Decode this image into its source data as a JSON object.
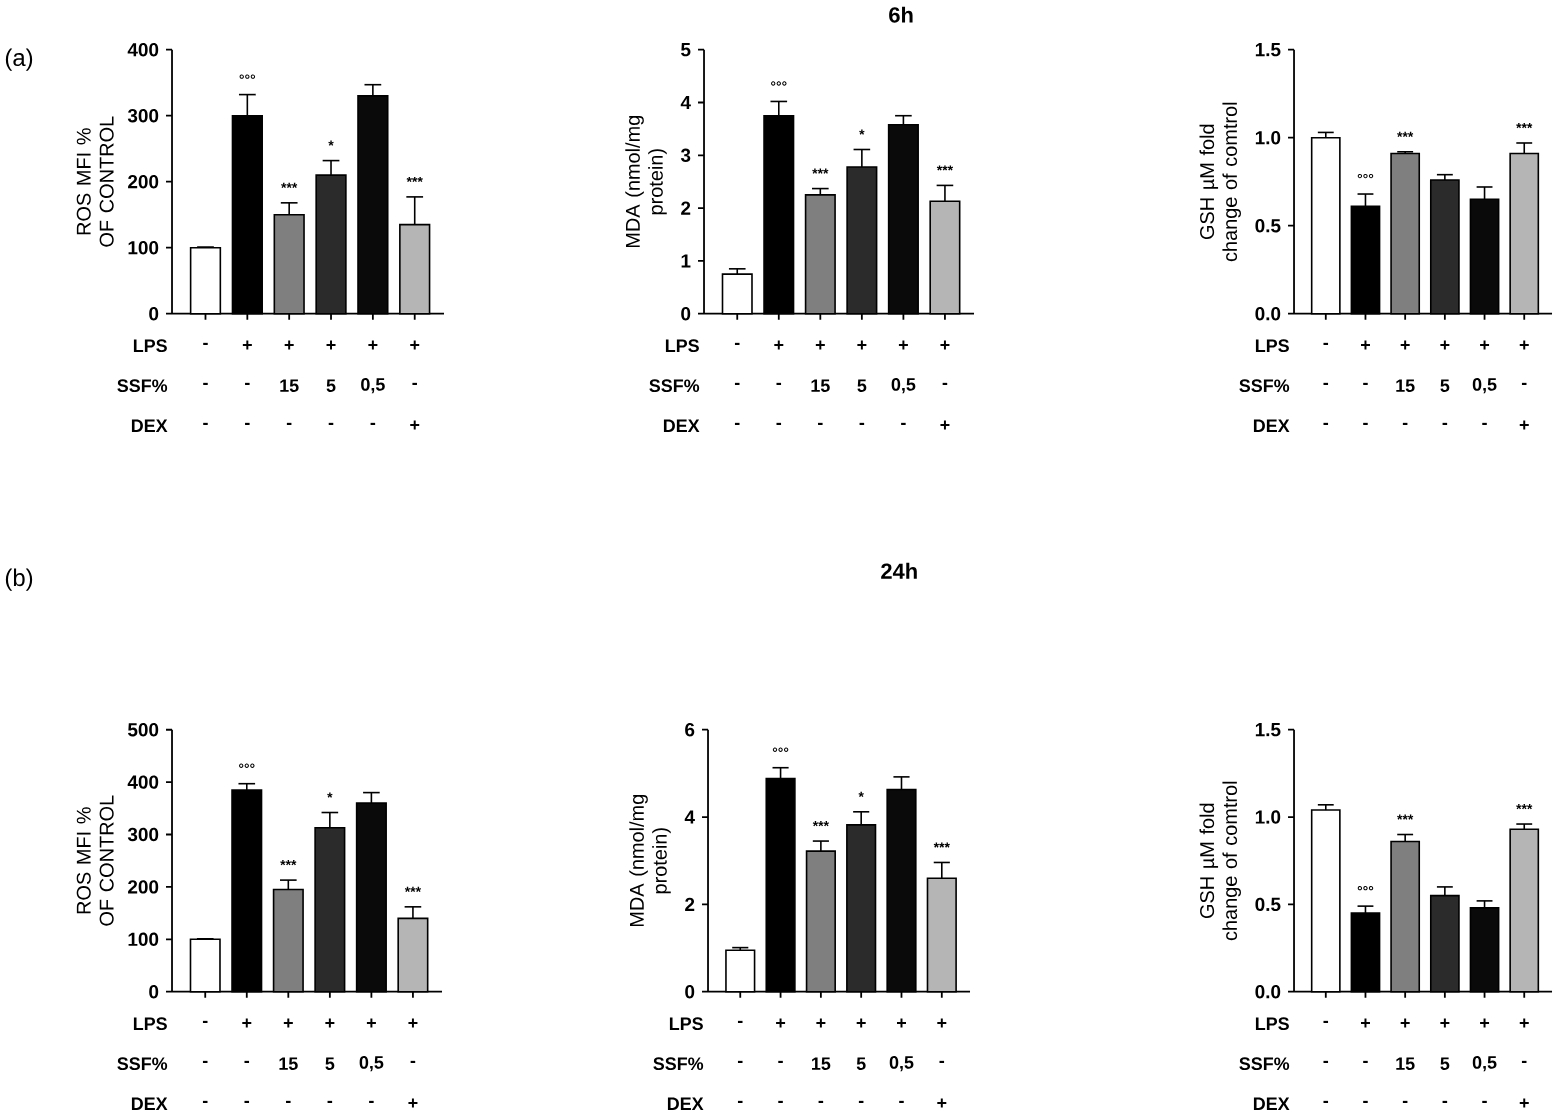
{
  "chart_data": [
    {
      "type": "bar",
      "ylabel": "ROS MFI % OF CONTROL",
      "categories": [
        null,
        null,
        null,
        null,
        null,
        null
      ],
      "values": [
        100,
        300,
        150,
        210,
        330,
        135
      ],
      "errors": [
        [
          100,
          101
        ],
        [
          300,
          332
        ],
        [
          150,
          168
        ],
        [
          210,
          232
        ],
        [
          330,
          347
        ],
        [
          135,
          177
        ]
      ],
      "colors": [
        "#ffffff",
        "#000000",
        "#7f7f7f",
        "#2b2b2b",
        "#0a0a0a",
        "#b5b5b5"
      ],
      "value_labels": [
        null,
        "°°°",
        "***",
        "*",
        null,
        "***"
      ],
      "ylim": [
        0,
        400
      ],
      "yticks": [
        0,
        100,
        200,
        300,
        400
      ],
      "grid": false,
      "annotations": [
        "LPS",
        "-",
        "+",
        "+",
        "+",
        "+",
        "+",
        "SSF%",
        "-",
        "-",
        "15",
        "5",
        "0,5",
        "-",
        "DEX",
        "-",
        "-",
        "-",
        "-",
        "-",
        "+",
        "(a)"
      ]
    },
    {
      "type": "bar",
      "title": "6h",
      "ylabel": "MDA (nmol/mg protein)",
      "categories": [
        null,
        null,
        null,
        null,
        null,
        null
      ],
      "values": [
        0.75,
        3.75,
        2.25,
        2.78,
        3.58,
        2.13
      ],
      "errors": [
        [
          0.75,
          0.85
        ],
        [
          3.75,
          4.02
        ],
        [
          2.25,
          2.37
        ],
        [
          2.78,
          3.11
        ],
        [
          3.58,
          3.75
        ],
        [
          2.13,
          2.43
        ]
      ],
      "colors": [
        "#ffffff",
        "#000000",
        "#7f7f7f",
        "#2b2b2b",
        "#0a0a0a",
        "#b5b5b5"
      ],
      "value_labels": [
        null,
        "°°°",
        "***",
        "*",
        null,
        "***"
      ],
      "ylim": [
        0,
        5
      ],
      "yticks": [
        0,
        1,
        2,
        3,
        4,
        5
      ],
      "grid": false,
      "annotations": [
        "LPS",
        "-",
        "+",
        "+",
        "+",
        "+",
        "+",
        "SSF%",
        "-",
        "-",
        "15",
        "5",
        "0,5",
        "-",
        "DEX",
        "-",
        "-",
        "-",
        "-",
        "-",
        "+"
      ]
    },
    {
      "type": "bar",
      "ylabel": "GSH µM fold change of comtrol",
      "categories": [
        null,
        null,
        null,
        null,
        null,
        null
      ],
      "values": [
        1.0,
        0.61,
        0.91,
        0.76,
        0.65,
        0.91
      ],
      "errors": [
        [
          1.0,
          1.03
        ],
        [
          0.61,
          0.68
        ],
        [
          0.91,
          0.92
        ],
        [
          0.76,
          0.79
        ],
        [
          0.65,
          0.72
        ],
        [
          0.91,
          0.97
        ]
      ],
      "colors": [
        "#ffffff",
        "#000000",
        "#7f7f7f",
        "#2b2b2b",
        "#0a0a0a",
        "#b5b5b5"
      ],
      "value_labels": [
        null,
        "°°°",
        "***",
        null,
        null,
        "***"
      ],
      "ylim": [
        0,
        1.5
      ],
      "yticks": [
        {
          "value": 0,
          "label": "0.0"
        },
        {
          "value": 0.5,
          "label": "0.5"
        },
        {
          "value": 1,
          "label": "1.0"
        },
        {
          "value": 1.5,
          "label": "1.5"
        }
      ],
      "grid": false,
      "annotations": [
        "LPS",
        "-",
        "+",
        "+",
        "+",
        "+",
        "+",
        "SSF%",
        "-",
        "-",
        "15",
        "5",
        "0,5",
        "-",
        "DEX",
        "-",
        "-",
        "-",
        "-",
        "-",
        "+"
      ]
    },
    {
      "type": "bar",
      "ylabel": "ROS MFI % OF CONTROL",
      "categories": [
        null,
        null,
        null,
        null,
        null,
        null
      ],
      "values": [
        100,
        385,
        195,
        313,
        360,
        140
      ],
      "errors": [
        [
          100,
          101
        ],
        [
          385,
          397
        ],
        [
          195,
          213
        ],
        [
          313,
          342
        ],
        [
          360,
          380
        ],
        [
          140,
          162
        ]
      ],
      "colors": [
        "#ffffff",
        "#000000",
        "#7f7f7f",
        "#2b2b2b",
        "#0a0a0a",
        "#b5b5b5"
      ],
      "value_labels": [
        null,
        "°°°",
        "***",
        "*",
        null,
        "***"
      ],
      "ylim": [
        0,
        500
      ],
      "yticks": [
        0,
        100,
        200,
        300,
        400,
        500
      ],
      "grid": false,
      "annotations": [
        "LPS",
        "-",
        "+",
        "+",
        "+",
        "+",
        "+",
        "SSF%",
        "-",
        "-",
        "15",
        "5",
        "0,5",
        "-",
        "DEX",
        "-",
        "-",
        "-",
        "-",
        "-",
        "+",
        "(b)"
      ]
    },
    {
      "type": "bar",
      "title": "24h",
      "ylabel": "MDA (nmol/mg protein)",
      "categories": [
        null,
        null,
        null,
        null,
        null,
        null
      ],
      "values": [
        0.95,
        4.88,
        3.22,
        3.82,
        4.63,
        2.6
      ],
      "errors": [
        [
          0.95,
          1.01
        ],
        [
          4.88,
          5.13
        ],
        [
          3.22,
          3.45
        ],
        [
          3.82,
          4.12
        ],
        [
          4.63,
          4.92
        ],
        [
          2.6,
          2.96
        ]
      ],
      "colors": [
        "#ffffff",
        "#000000",
        "#7f7f7f",
        "#2b2b2b",
        "#0a0a0a",
        "#b5b5b5"
      ],
      "value_labels": [
        null,
        "°°°",
        "***",
        "*",
        null,
        "***"
      ],
      "ylim": [
        0,
        6
      ],
      "yticks": [
        0,
        2,
        4,
        6
      ],
      "grid": false,
      "annotations": [
        "LPS",
        "-",
        "+",
        "+",
        "+",
        "+",
        "+",
        "SSF%",
        "-",
        "-",
        "15",
        "5",
        "0,5",
        "-",
        "DEX",
        "-",
        "-",
        "-",
        "-",
        "-",
        "+"
      ]
    },
    {
      "type": "bar",
      "ylabel": "GSH µM fold change of comtrol",
      "categories": [
        null,
        null,
        null,
        null,
        null,
        null
      ],
      "values": [
        1.04,
        0.45,
        0.86,
        0.55,
        0.48,
        0.93
      ],
      "errors": [
        [
          1.04,
          1.07
        ],
        [
          0.45,
          0.49
        ],
        [
          0.86,
          0.9
        ],
        [
          0.55,
          0.6
        ],
        [
          0.48,
          0.52
        ],
        [
          0.93,
          0.96
        ]
      ],
      "colors": [
        "#ffffff",
        "#000000",
        "#7f7f7f",
        "#2b2b2b",
        "#0a0a0a",
        "#b5b5b5"
      ],
      "value_labels": [
        null,
        "°°°",
        "***",
        null,
        null,
        "***"
      ],
      "ylim": [
        0,
        1.5
      ],
      "yticks": [
        {
          "value": 0,
          "label": "0.0"
        },
        {
          "value": 0.5,
          "label": "0.5"
        },
        {
          "value": 1,
          "label": "1.0"
        },
        {
          "value": 1.5,
          "label": "1.5"
        }
      ],
      "grid": false,
      "annotations": [
        "LPS",
        "-",
        "+",
        "+",
        "+",
        "+",
        "+",
        "SSF%",
        "-",
        "-",
        "15",
        "5",
        "0,5",
        "-",
        "DEX",
        "-",
        "-",
        "-",
        "-",
        "-",
        "+"
      ]
    }
  ]
}
